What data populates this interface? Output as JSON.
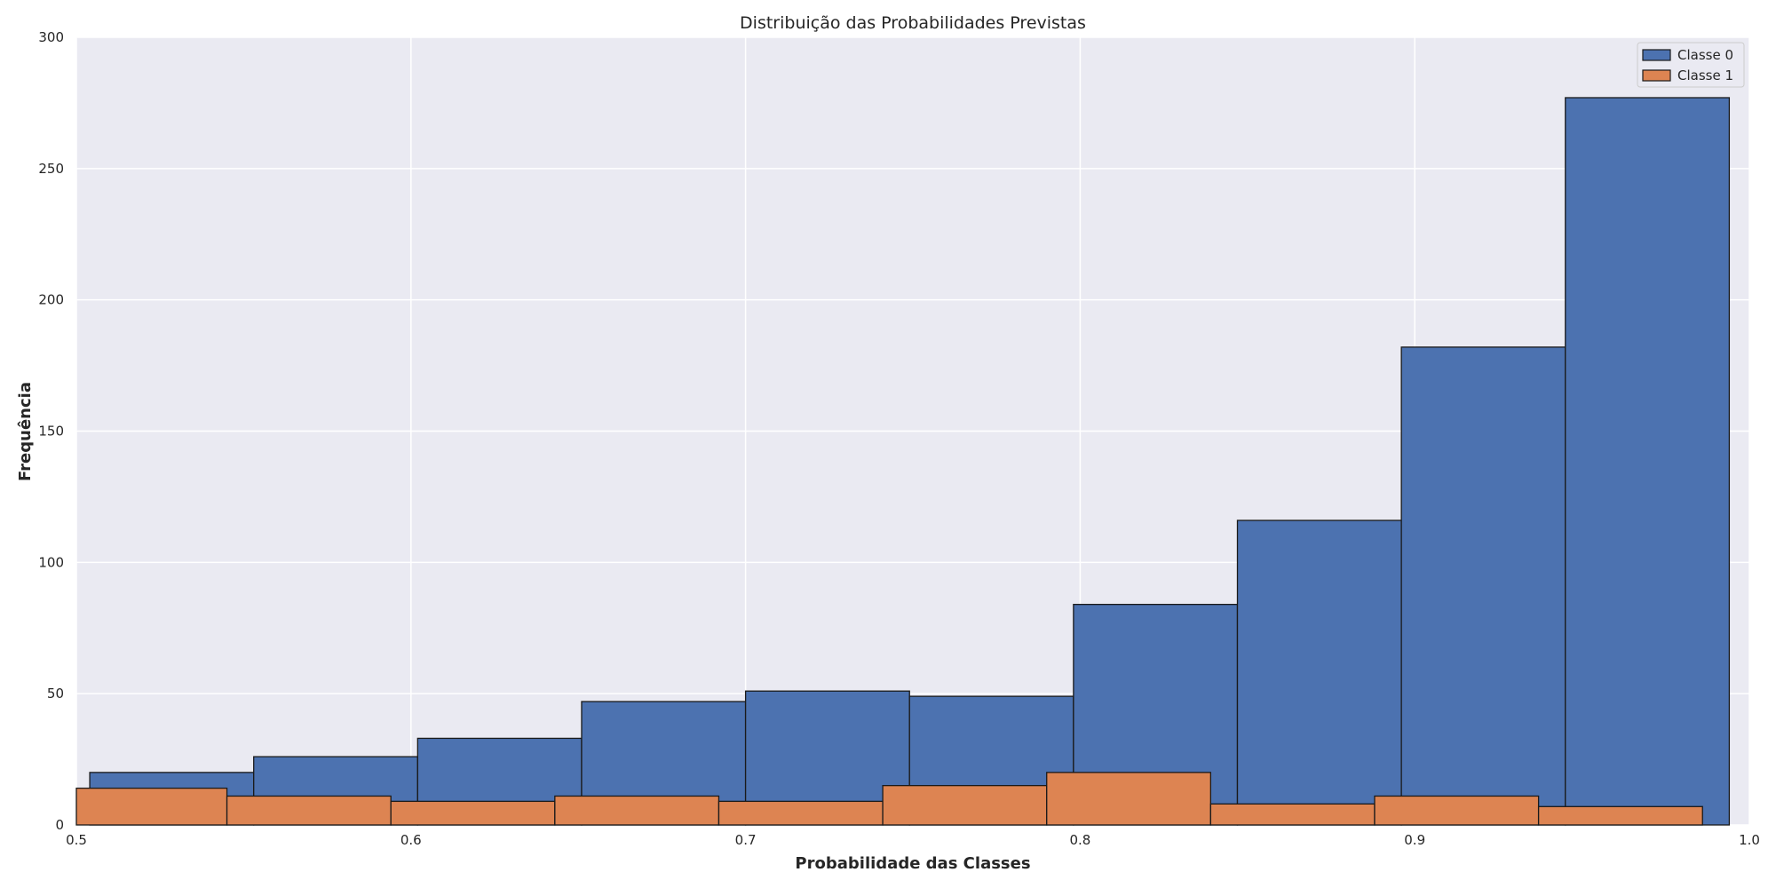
{
  "chart_data": {
    "type": "bar",
    "title": "Distribuição das Probabilidades Previstas",
    "xlabel": "Probabilidade das Classes",
    "ylabel": "Frequência",
    "xlim": [
      0.5,
      1.0
    ],
    "ylim": [
      0,
      300
    ],
    "xticks": [
      "0.5",
      "0.6",
      "0.7",
      "0.8",
      "0.9",
      "1.0"
    ],
    "yticks": [
      "0",
      "50",
      "100",
      "150",
      "200",
      "250",
      "300"
    ],
    "grid": true,
    "legend_position": "top-right",
    "series": [
      {
        "name": "Classe 0",
        "color": "#4c72b0",
        "bin_edges": [
          0.504,
          0.553,
          0.602,
          0.651,
          0.7,
          0.749,
          0.798,
          0.847,
          0.896,
          0.945,
          0.994
        ],
        "values": [
          20,
          26,
          33,
          47,
          51,
          49,
          84,
          116,
          182,
          277
        ]
      },
      {
        "name": "Classe 1",
        "color": "#dd8452",
        "bin_edges": [
          0.496,
          0.545,
          0.594,
          0.643,
          0.692,
          0.741,
          0.79,
          0.839,
          0.888,
          0.937,
          0.986
        ],
        "values": [
          14,
          11,
          9,
          11,
          9,
          15,
          20,
          8,
          11,
          7
        ]
      }
    ]
  }
}
